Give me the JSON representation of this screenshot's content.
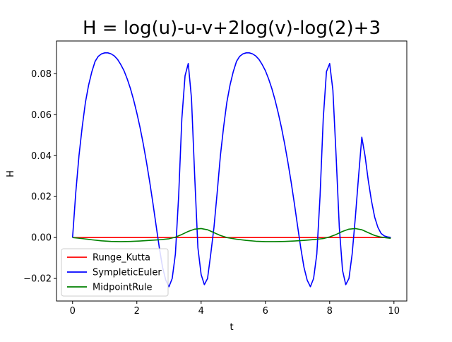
{
  "chart_data": {
    "type": "line",
    "title": "H = log(u)-u-v+2log(v)-log(2)+3",
    "xlabel": "t",
    "ylabel": "H",
    "xlim": [
      -0.5,
      10.4
    ],
    "ylim": [
      -0.031,
      0.096
    ],
    "xticks": [
      0,
      2,
      4,
      6,
      8,
      10
    ],
    "xtick_labels": [
      "0",
      "2",
      "4",
      "6",
      "8",
      "10"
    ],
    "yticks": [
      -0.02,
      0.0,
      0.02,
      0.04,
      0.06,
      0.08
    ],
    "ytick_labels": [
      "−0.02",
      "0.00",
      "0.02",
      "0.04",
      "0.06",
      "0.08"
    ],
    "grid": false,
    "legend_position": "lower-left",
    "series": [
      {
        "name": "Runge_Kutta",
        "color": "#ff0000",
        "x": [
          0,
          9.9
        ],
        "y": [
          0.0,
          0.0
        ]
      },
      {
        "name": "SympleticEuler",
        "color": "#0000ff",
        "x": [
          0.0,
          0.1,
          0.2,
          0.3,
          0.4,
          0.5,
          0.6,
          0.7,
          0.8,
          0.9,
          1.0,
          1.1,
          1.2,
          1.3,
          1.4,
          1.5,
          1.6,
          1.7,
          1.8,
          1.9,
          2.0,
          2.1,
          2.2,
          2.3,
          2.4,
          2.5,
          2.6,
          2.7,
          2.8,
          2.9,
          3.0,
          3.1,
          3.2,
          3.3,
          3.4,
          3.5,
          3.6,
          3.7,
          3.8,
          3.9,
          4.0,
          4.1,
          4.2,
          4.3,
          4.4,
          4.5,
          4.6,
          4.7,
          4.8,
          4.9,
          5.0,
          5.1,
          5.2,
          5.3,
          5.4,
          5.5,
          5.6,
          5.7,
          5.8,
          5.9,
          6.0,
          6.1,
          6.2,
          6.3,
          6.4,
          6.5,
          6.6,
          6.7,
          6.8,
          6.9,
          7.0,
          7.1,
          7.2,
          7.3,
          7.4,
          7.5,
          7.6,
          7.7,
          7.8,
          7.9,
          8.0,
          8.1,
          8.2,
          8.3,
          8.4,
          8.5,
          8.6,
          8.7,
          8.8,
          8.9,
          9.0,
          9.1,
          9.2,
          9.3,
          9.4,
          9.5,
          9.6,
          9.7,
          9.8,
          9.9
        ],
        "y": [
          0.0,
          0.022,
          0.04,
          0.054,
          0.066,
          0.0745,
          0.081,
          0.086,
          0.0885,
          0.0897,
          0.0902,
          0.0902,
          0.0897,
          0.0887,
          0.087,
          0.0845,
          0.0815,
          0.0775,
          0.0728,
          0.0672,
          0.0608,
          0.0537,
          0.0457,
          0.0368,
          0.0272,
          0.0168,
          0.0058,
          -0.005,
          -0.0145,
          -0.0208,
          -0.024,
          -0.02,
          -0.008,
          0.02,
          0.058,
          0.079,
          0.085,
          0.068,
          0.03,
          -0.005,
          -0.018,
          -0.023,
          -0.02,
          -0.008,
          0.005,
          0.022,
          0.04,
          0.054,
          0.066,
          0.0745,
          0.081,
          0.086,
          0.0885,
          0.0897,
          0.0902,
          0.0902,
          0.0897,
          0.0887,
          0.087,
          0.0845,
          0.0815,
          0.0775,
          0.0728,
          0.0672,
          0.0608,
          0.0537,
          0.0457,
          0.0368,
          0.0272,
          0.0168,
          0.0058,
          -0.005,
          -0.0145,
          -0.0208,
          -0.024,
          -0.02,
          -0.008,
          0.02,
          0.058,
          0.081,
          0.085,
          0.072,
          0.04,
          0.005,
          -0.016,
          -0.023,
          -0.02,
          -0.008,
          0.01,
          0.03,
          0.049,
          0.04,
          0.028,
          0.018,
          0.01,
          0.005,
          0.002,
          0.0008,
          0.0003,
          0.0001
        ],
        "note": ""
      },
      {
        "name": "MidpointRule",
        "color": "#008000",
        "x": [
          0.0,
          0.3,
          0.6,
          0.9,
          1.2,
          1.5,
          1.8,
          2.1,
          2.4,
          2.7,
          3.0,
          3.2,
          3.4,
          3.6,
          3.8,
          4.0,
          4.2,
          4.4,
          4.6,
          4.8,
          5.1,
          5.4,
          5.7,
          6.0,
          6.3,
          6.6,
          6.9,
          7.2,
          7.5,
          7.8,
          8.0,
          8.2,
          8.4,
          8.6,
          8.8,
          9.0,
          9.2,
          9.4,
          9.6,
          9.9
        ],
        "y": [
          0.0,
          -0.0005,
          -0.0011,
          -0.0016,
          -0.0019,
          -0.002,
          -0.0019,
          -0.0017,
          -0.0014,
          -0.0011,
          -0.0006,
          0.0002,
          0.0015,
          0.003,
          0.0041,
          0.0044,
          0.0038,
          0.0024,
          0.001,
          0.0,
          -0.0008,
          -0.0014,
          -0.0018,
          -0.002,
          -0.002,
          -0.0019,
          -0.0017,
          -0.0014,
          -0.001,
          -0.0005,
          0.0003,
          0.0015,
          0.003,
          0.0041,
          0.0044,
          0.0038,
          0.0024,
          0.001,
          0.0002,
          -0.0004
        ]
      }
    ]
  }
}
